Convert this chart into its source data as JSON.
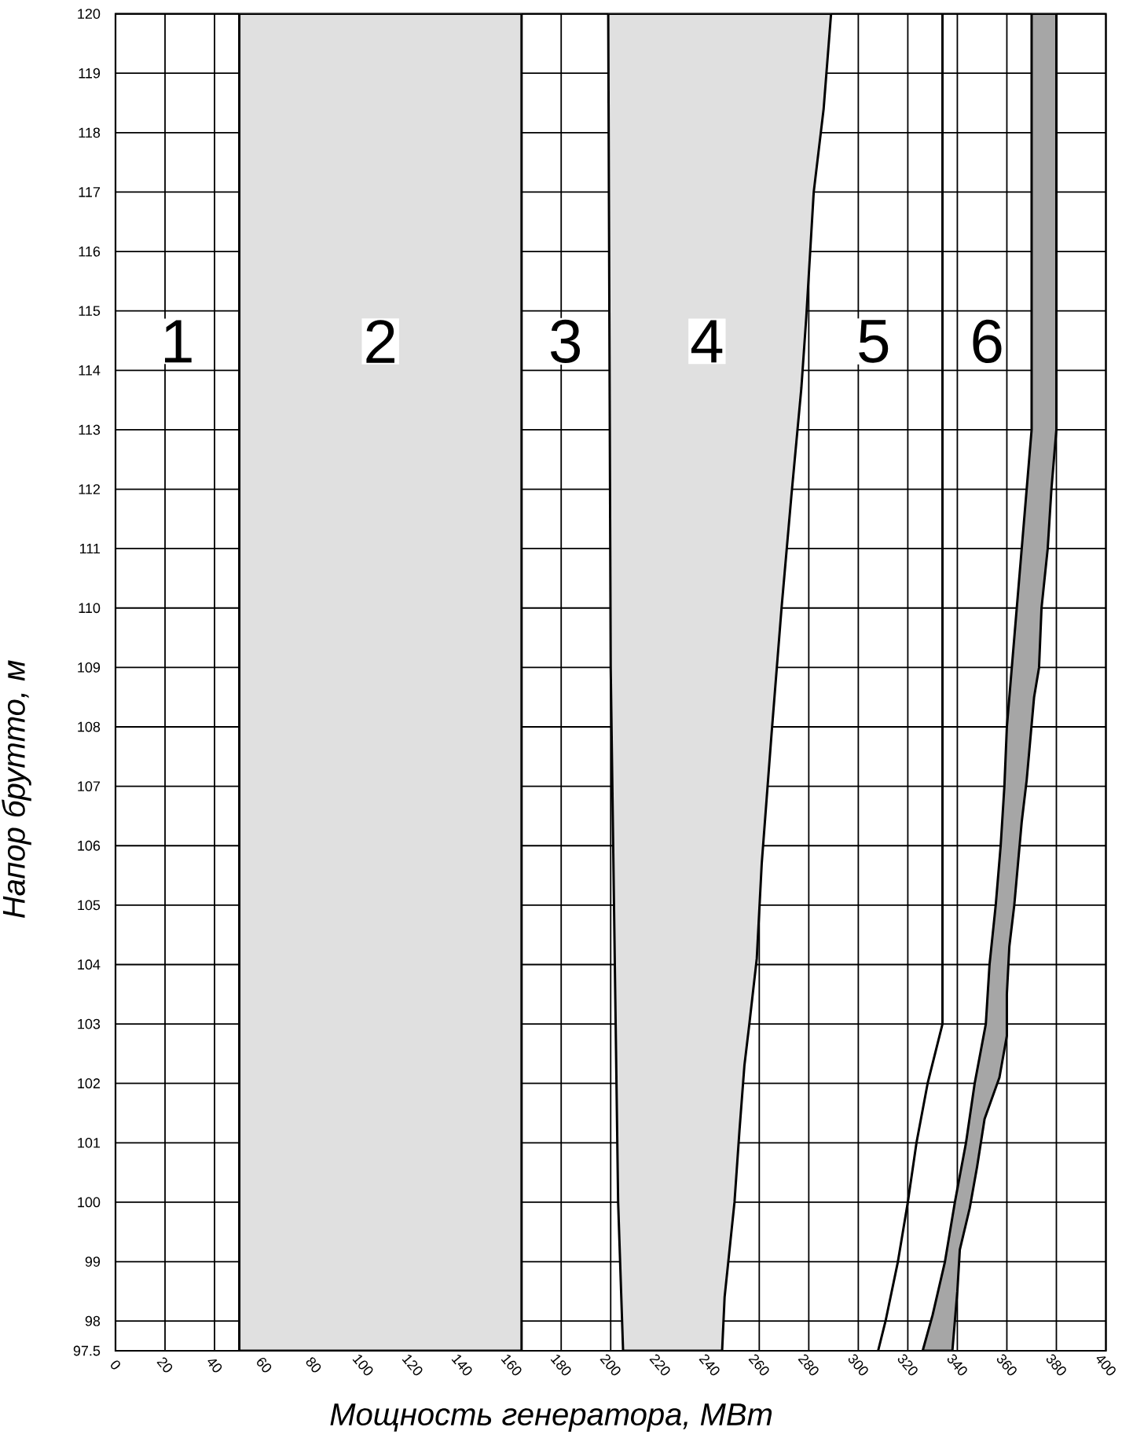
{
  "chart_data": {
    "type": "line",
    "xlabel": "Мощность генератора, МВт",
    "ylabel": "Напор брутто, м",
    "xlim": [
      0,
      400
    ],
    "ylim": [
      97.5,
      120
    ],
    "xticks": [
      0,
      20,
      40,
      60,
      80,
      100,
      120,
      140,
      160,
      180,
      200,
      220,
      240,
      260,
      280,
      300,
      320,
      340,
      360,
      380,
      400
    ],
    "yticks": [
      97.5,
      98,
      99,
      100,
      101,
      102,
      103,
      104,
      105,
      106,
      107,
      108,
      109,
      110,
      111,
      112,
      113,
      114,
      115,
      116,
      117,
      118,
      119,
      120
    ],
    "grid": true,
    "series": [
      {
        "type": "area",
        "color": "#000000",
        "x": [
          50,
          50,
          164,
          164
        ],
        "values": [
          97.5,
          120,
          120,
          97.5
        ]
      },
      {
        "type": "area",
        "color": "#000000",
        "x": [
          205,
          203,
          202,
          200,
          199,
          289,
          286,
          282,
          279,
          277,
          273,
          269,
          265,
          261,
          259,
          256,
          254,
          252,
          250,
          248,
          246,
          245
        ],
        "values": [
          97.5,
          100,
          103,
          109,
          120,
          120,
          118.4,
          117,
          114.9,
          113.7,
          111.9,
          110,
          107.9,
          105.7,
          104.1,
          103,
          102.3,
          101.2,
          100,
          99.2,
          98.4,
          97.5
        ]
      },
      {
        "type": "area",
        "color": "#000000",
        "x": [
          326,
          330,
          335,
          339,
          343.5,
          347,
          351.5,
          353,
          355.5,
          357.5,
          359,
          360,
          362,
          364,
          366,
          368,
          370,
          370,
          380,
          380,
          378,
          376.5,
          374,
          373,
          371,
          368,
          366,
          364.5,
          363,
          361,
          360,
          360,
          357,
          351,
          348,
          345,
          341,
          340,
          338
        ],
        "values": [
          97.5,
          98.1,
          99,
          100,
          101,
          102,
          103,
          104,
          105,
          106,
          107,
          108,
          109,
          110,
          111,
          112,
          113,
          120,
          120,
          113,
          112,
          111,
          110,
          109,
          108.5,
          107.1,
          106.4,
          105.7,
          105,
          104.3,
          103.5,
          102.8,
          102.1,
          101.4,
          100.6,
          99.9,
          99.2,
          98.5,
          97.5
        ]
      },
      {
        "color": "#000000",
        "x": [
          308,
          311,
          316,
          320,
          323.5,
          328,
          334,
          334
        ],
        "values": [
          97.5,
          98,
          99,
          100,
          101,
          102,
          103,
          120
        ]
      }
    ],
    "annotations": [
      "1",
      "2",
      "3",
      "4",
      "5",
      "6"
    ]
  }
}
